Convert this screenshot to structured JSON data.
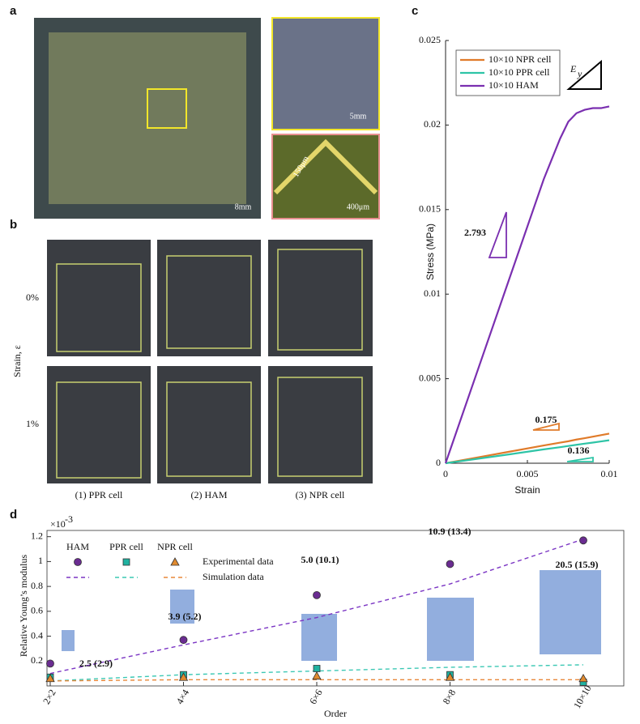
{
  "panels": {
    "a": {
      "label": "a",
      "scale_main": "8mm",
      "scale_inset1": "5mm",
      "scale_inset2": "400μm",
      "width_note": "150μm"
    },
    "b": {
      "label": "b",
      "axis_label": "Strain, ε",
      "rows": [
        "0%",
        "1%"
      ],
      "columns": [
        "(1) PPR cell",
        "(2) HAM",
        "(3) NPR cell"
      ]
    },
    "c": {
      "label": "c"
    },
    "d": {
      "label": "d"
    }
  },
  "chart_data": [
    {
      "type": "line",
      "x_label": "Strain",
      "y_label": "Stress (MPa)",
      "xlim": [
        0,
        0.01
      ],
      "ylim": [
        0,
        0.025
      ],
      "xticks": [
        0,
        0.005,
        0.01
      ],
      "yticks": [
        0,
        0.005,
        0.01,
        0.015,
        0.02,
        0.025
      ],
      "x": [
        0,
        0.002,
        0.004,
        0.006,
        0.007,
        0.0075,
        0.008,
        0.0085,
        0.009,
        0.0095,
        0.01
      ],
      "series": [
        {
          "name": "10×10 NPR cell",
          "color": "#e07b2a",
          "values": [
            0,
            0.00035,
            0.0007,
            0.00105,
            0.00122,
            0.0013,
            0.0014,
            0.00148,
            0.00157,
            0.00166,
            0.00175
          ]
        },
        {
          "name": "10×10 PPR cell",
          "color": "#2ec4a6",
          "values": [
            0,
            0.00027,
            0.00054,
            0.00082,
            0.00095,
            0.00102,
            0.00109,
            0.00116,
            0.00122,
            0.00129,
            0.00136
          ]
        },
        {
          "name": "10×10 HAM",
          "color": "#7a2fb0",
          "values": [
            0,
            0.0056,
            0.0112,
            0.0168,
            0.0192,
            0.0202,
            0.0207,
            0.0209,
            0.021,
            0.021,
            0.0211
          ]
        }
      ],
      "legend": "upper left",
      "annotations": [
        "2.793",
        "0.175",
        "0.136"
      ],
      "modulus_symbol": "E",
      "modulus_subscript": "y"
    },
    {
      "type": "scatter",
      "x_label": "Order",
      "y_label": "Relative Young’s modulus",
      "y_multiplier": "×10",
      "y_multiplier_exponent": "-3",
      "categories": [
        "2×2",
        "4×4",
        "6×6",
        "8×8",
        "10×10"
      ],
      "ylim": [
        0,
        1.25
      ],
      "yticks": [
        0.2,
        0.4,
        0.6,
        0.8,
        1,
        1.2
      ],
      "groups": [
        {
          "name": "HAM",
          "marker": "circle",
          "color": "#6a2c91",
          "sim_color": "#7b35c4",
          "experimental": [
            0.18,
            0.37,
            0.73,
            0.98,
            1.17
          ],
          "simulation": [
            0.1,
            0.33,
            0.55,
            0.82,
            1.18
          ]
        },
        {
          "name": "PPR cell",
          "marker": "square",
          "color": "#20b2a0",
          "sim_color": "#3cc8b4",
          "experimental": [
            0.07,
            0.09,
            0.14,
            0.09,
            0.03
          ],
          "simulation": [
            0.04,
            0.09,
            0.12,
            0.15,
            0.17
          ]
        },
        {
          "name": "NPR cell",
          "marker": "triangle",
          "color": "#e08a2e",
          "sim_color": "#e8883a",
          "experimental": [
            0.06,
            0.07,
            0.08,
            0.07,
            0.06
          ],
          "simulation": [
            0.04,
            0.05,
            0.05,
            0.05,
            0.05
          ]
        }
      ],
      "legend_rows": [
        "Experimental data",
        "Simulation data"
      ],
      "annotations": [
        "2.5 (2.9)",
        "3.9 (5.2)",
        "5.0 (10.1)",
        "10.9 (13.4)",
        "20.5 (15.9)"
      ]
    }
  ]
}
